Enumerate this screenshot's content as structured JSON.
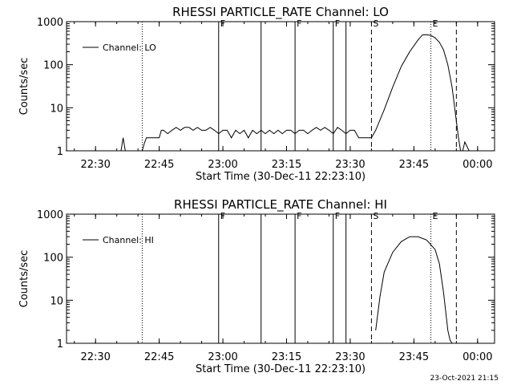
{
  "chart_data": [
    {
      "type": "line",
      "title": "RHESSI PARTICLE_RATE Channel: LO",
      "xlabel": "Start Time (30-Dec-11 22:23:10)",
      "ylabel": "Counts/sec",
      "y_scale": "log",
      "ylim": [
        1,
        1000
      ],
      "xlim": [
        "22:23:10",
        "00:04:00"
      ],
      "x_tick_labels": [
        "22:30",
        "22:45",
        "23:00",
        "23:15",
        "23:30",
        "23:45",
        "00:00"
      ],
      "y_tick_labels": [
        "1",
        "10",
        "100",
        "1000"
      ],
      "legend": {
        "position": "top-left",
        "entries": [
          "Channel: LO"
        ]
      },
      "markers": [
        {
          "label": "F",
          "time": "22:59",
          "style": "solid"
        },
        {
          "label": "",
          "time": "23:09",
          "style": "solid"
        },
        {
          "label": "F",
          "time": "23:17",
          "style": "solid"
        },
        {
          "label": "F",
          "time": "23:26",
          "style": "solid"
        },
        {
          "label": "",
          "time": "23:29",
          "style": "solid"
        },
        {
          "label": "S",
          "time": "23:35",
          "style": "dashed"
        },
        {
          "label": "",
          "time": "23:55",
          "style": "dashed"
        },
        {
          "label": "",
          "time": "22:41",
          "style": "dotted"
        },
        {
          "label": "E",
          "time": "23:49",
          "style": "dotted"
        },
        {
          "label": "",
          "time": "00:04",
          "style": "dotted"
        }
      ],
      "series": [
        {
          "name": "Channel: LO",
          "x": [
            "22:23",
            "22:36",
            "22:36.5",
            "22:37",
            "22:41",
            "22:41.5",
            "22:42",
            "22:45",
            "22:45.5",
            "22:46",
            "22:47",
            "22:48",
            "22:49",
            "22:50",
            "22:51",
            "22:52",
            "22:53",
            "22:54",
            "22:55",
            "22:56",
            "22:57",
            "22:58",
            "22:59",
            "23:00",
            "23:01",
            "23:02",
            "23:03",
            "23:04",
            "23:05",
            "23:06",
            "23:07",
            "23:08",
            "23:09",
            "23:10",
            "23:11",
            "23:12",
            "23:13",
            "23:14",
            "23:15",
            "23:16",
            "23:17",
            "23:18",
            "23:19",
            "23:20",
            "23:21",
            "23:22",
            "23:23",
            "23:24",
            "23:25",
            "23:26",
            "23:27",
            "23:28",
            "23:29",
            "23:30",
            "23:31",
            "23:32",
            "23:33",
            "23:34",
            "23:35",
            "23:36",
            "23:38",
            "23:40",
            "23:42",
            "23:44",
            "23:46",
            "23:47",
            "23:48",
            "23:49",
            "23:50",
            "23:51",
            "23:52",
            "23:53",
            "23:54",
            "23:55",
            "23:55.5",
            "23:56",
            "23:56.5",
            "23:57",
            "23:58",
            "23:58.5",
            "23:59"
          ],
          "y": [
            1,
            1,
            2,
            1,
            1,
            1.5,
            2,
            2,
            3,
            3,
            2.5,
            3,
            3.5,
            3,
            3.5,
            3.5,
            3,
            3.5,
            3,
            3,
            3.5,
            3,
            2.5,
            3,
            3,
            2,
            3,
            2.5,
            3,
            2,
            3,
            2.5,
            3,
            2.5,
            3,
            2.5,
            3,
            2.5,
            3,
            3,
            2.5,
            3,
            3,
            2.5,
            3,
            3.5,
            3,
            3.5,
            3,
            2.5,
            3.5,
            3,
            2.5,
            3,
            3,
            2,
            2,
            2,
            2,
            3,
            9,
            30,
            90,
            200,
            380,
            490,
            500,
            480,
            420,
            330,
            220,
            100,
            30,
            5,
            2,
            1,
            1,
            1.6,
            1,
            1,
            1
          ]
        }
      ]
    },
    {
      "type": "line",
      "title": "RHESSI PARTICLE_RATE Channel: HI",
      "xlabel": "Start Time (30-Dec-11 22:23:10)",
      "ylabel": "Counts/sec",
      "y_scale": "log",
      "ylim": [
        1,
        1000
      ],
      "xlim": [
        "22:23:10",
        "00:04:00"
      ],
      "x_tick_labels": [
        "22:30",
        "22:45",
        "23:00",
        "23:15",
        "23:30",
        "23:45",
        "00:00"
      ],
      "y_tick_labels": [
        "1",
        "10",
        "100",
        "1000"
      ],
      "legend": {
        "position": "top-left",
        "entries": [
          "Channel: HI"
        ]
      },
      "markers": [
        {
          "label": "F",
          "time": "22:59",
          "style": "solid"
        },
        {
          "label": "",
          "time": "23:09",
          "style": "solid"
        },
        {
          "label": "F",
          "time": "23:17",
          "style": "solid"
        },
        {
          "label": "F",
          "time": "23:26",
          "style": "solid"
        },
        {
          "label": "",
          "time": "23:29",
          "style": "solid"
        },
        {
          "label": "S",
          "time": "23:35",
          "style": "dashed"
        },
        {
          "label": "",
          "time": "23:55",
          "style": "dashed"
        },
        {
          "label": "",
          "time": "22:41",
          "style": "dotted"
        },
        {
          "label": "E",
          "time": "23:49",
          "style": "dotted"
        },
        {
          "label": "",
          "time": "00:04",
          "style": "dotted"
        }
      ],
      "series": [
        {
          "name": "Channel: HI",
          "x": [
            "23:36",
            "23:37",
            "23:38",
            "23:40",
            "23:42",
            "23:44",
            "23:46",
            "23:48",
            "23:50",
            "23:51",
            "23:52",
            "23:53",
            "23:53.5",
            "23:54"
          ],
          "y": [
            2,
            12,
            45,
            130,
            230,
            300,
            300,
            250,
            150,
            70,
            15,
            2,
            1.2,
            1
          ]
        }
      ]
    }
  ],
  "timestamp": "23-Oct-2021 21:15"
}
